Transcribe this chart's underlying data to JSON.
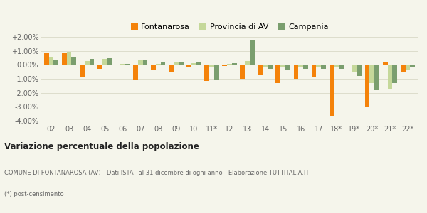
{
  "years": [
    "02",
    "03",
    "04",
    "05",
    "06",
    "07",
    "08",
    "09",
    "10",
    "11*",
    "12",
    "13",
    "14",
    "15",
    "16",
    "17",
    "18*",
    "19*",
    "20*",
    "21*",
    "22*"
  ],
  "fontanarosa": [
    0.0085,
    0.009,
    -0.0092,
    -0.003,
    0.0002,
    -0.011,
    -0.004,
    -0.005,
    -0.0012,
    -0.0115,
    -0.0008,
    -0.01,
    -0.007,
    -0.013,
    -0.01,
    -0.0085,
    -0.037,
    -0.0005,
    -0.03,
    0.0015,
    -0.0055
  ],
  "provincia_av": [
    0.0055,
    0.0093,
    0.0028,
    0.0042,
    0.0005,
    0.0035,
    0.0008,
    0.002,
    0.0012,
    -0.002,
    0.0008,
    0.0028,
    -0.002,
    -0.002,
    -0.002,
    -0.002,
    -0.002,
    -0.0055,
    -0.013,
    -0.017,
    -0.0035
  ],
  "campania": [
    0.0035,
    0.006,
    0.0042,
    0.005,
    0.0005,
    0.003,
    0.0022,
    0.0018,
    0.0018,
    -0.0105,
    0.0012,
    0.0175,
    -0.003,
    -0.004,
    -0.0028,
    -0.003,
    -0.003,
    -0.008,
    -0.018,
    -0.013,
    -0.0018
  ],
  "color_fontanarosa": "#f4820a",
  "color_provincia_av": "#c5d89a",
  "color_campania": "#7a9e6e",
  "background_color": "#f5f5eb",
  "grid_color": "#ddddcc",
  "ylim": [
    -0.042,
    0.022
  ],
  "yticks": [
    -0.04,
    -0.03,
    -0.02,
    -0.01,
    0.0,
    0.01,
    0.02
  ],
  "ytick_labels": [
    "-4.00%",
    "-3.00%",
    "-2.00%",
    "-1.00%",
    "0.00%",
    "+1.00%",
    "+2.00%"
  ],
  "title": "Variazione percentuale della popolazione",
  "subtitle": "COMUNE DI FONTANAROSA (AV) - Dati ISTAT al 31 dicembre di ogni anno - Elaborazione TUTTITALIA.IT",
  "footnote": "(*) post-censimento",
  "legend_fontanarosa": "Fontanarosa",
  "legend_provincia": "Provincia di AV",
  "legend_campania": "Campania",
  "bar_width": 0.27
}
